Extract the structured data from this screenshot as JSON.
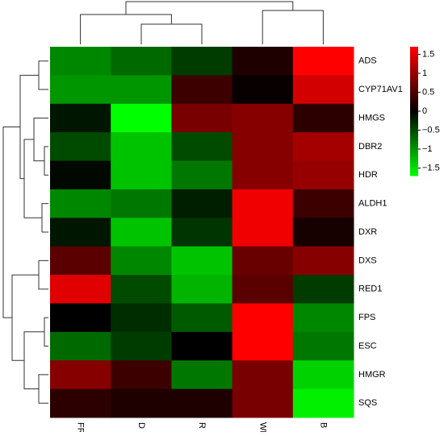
{
  "chart_data": {
    "type": "heatmap",
    "rows": [
      "ADS",
      "CYP71AV1",
      "HMGS",
      "DBR2",
      "HDR",
      "ALDH1",
      "DXR",
      "DXS",
      "RED1",
      "FPS",
      "ESC",
      "HMGR",
      "SQS"
    ],
    "columns": [
      "FR",
      "D",
      "R",
      "WL",
      "B"
    ],
    "values": [
      [
        -0.9,
        -0.7,
        -0.4,
        0.2,
        1.7
      ],
      [
        -1.0,
        -1.0,
        0.4,
        0.05,
        1.4
      ],
      [
        -0.15,
        -1.7,
        0.8,
        0.9,
        0.3
      ],
      [
        -0.5,
        -1.3,
        -0.5,
        0.9,
        1.1
      ],
      [
        -0.05,
        -1.3,
        -0.8,
        0.9,
        1.0
      ],
      [
        -0.9,
        -0.8,
        -0.2,
        1.6,
        0.4
      ],
      [
        -0.15,
        -1.3,
        -0.35,
        1.6,
        0.15
      ],
      [
        0.6,
        -0.9,
        -1.3,
        0.7,
        0.9
      ],
      [
        1.5,
        -0.5,
        -1.2,
        0.6,
        -0.4
      ],
      [
        0.0,
        -0.3,
        -0.6,
        1.7,
        -0.9
      ],
      [
        -0.7,
        -0.4,
        0.0,
        1.7,
        -0.8
      ],
      [
        0.9,
        0.4,
        -0.8,
        0.8,
        -1.4
      ],
      [
        0.3,
        0.2,
        0.2,
        0.8,
        -1.6
      ]
    ],
    "zlim": [
      -1.7,
      1.7
    ],
    "colors": {
      "low": "#00ff00",
      "mid": "#000000",
      "high": "#ff0000"
    },
    "zticks": [
      1.5,
      1,
      0.5,
      0,
      {
        "value": -0.5,
        "label": "−0.5"
      },
      {
        "value": -1,
        "label": "−1"
      },
      {
        "value": -1.5,
        "label": "−1.5"
      }
    ]
  }
}
